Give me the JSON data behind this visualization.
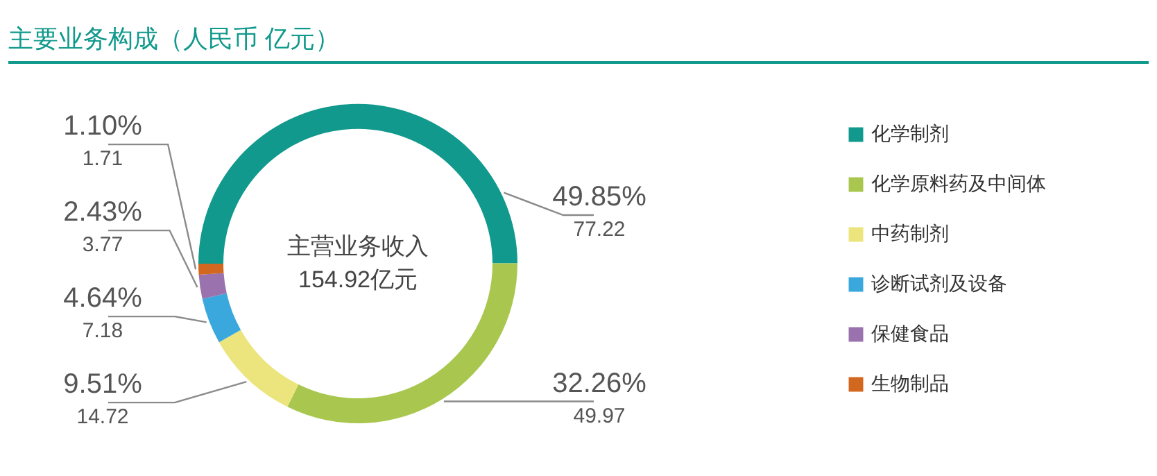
{
  "chart_data": {
    "type": "donut",
    "title": "主要业务构成（人民币 亿元）",
    "categories": [
      "化学制剂",
      "化学原料药及中间体",
      "中药制剂",
      "诊断试剂及设备",
      "保健食品",
      "生物制品"
    ],
    "values": [
      77.22,
      49.97,
      14.72,
      7.18,
      3.77,
      1.71
    ],
    "colors": [
      "#10998c",
      "#a9c74f",
      "#ece47c",
      "#3aa8dd",
      "#9a72ad",
      "#d2671f"
    ],
    "data_labels": true,
    "legend": "right",
    "annotations": [
      "主营业务收入",
      "154.92亿元",
      {
        "text": "49.85%",
        "x": "化学制剂"
      },
      {
        "text": "32.26%",
        "x": "化学原料药及中间体"
      },
      {
        "text": "9.51%",
        "x": "中药制剂"
      },
      {
        "text": "4.64%",
        "x": "诊断试剂及设备"
      },
      {
        "text": "2.43%",
        "x": "保健食品"
      },
      {
        "text": "1.10%",
        "x": "生物制品"
      }
    ]
  }
}
